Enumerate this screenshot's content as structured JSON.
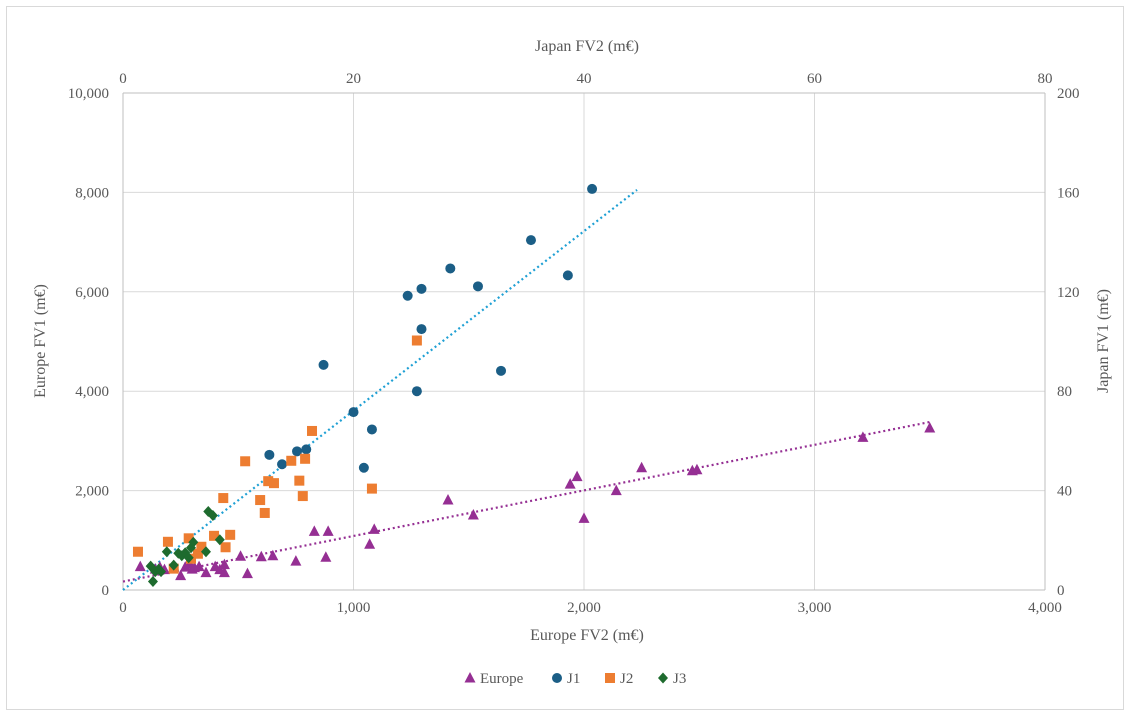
{
  "chart_data": {
    "type": "scatter",
    "xlabel": "Europe FV2 (m€)",
    "ylabel": "Europe FV1 (m€)",
    "x2label": "Japan FV2 (m€)",
    "y2label": "Japan FV1 (m€)",
    "xlim": [
      0,
      4000
    ],
    "ylim": [
      0,
      10000
    ],
    "x2lim": [
      0,
      80
    ],
    "y2lim": [
      0,
      200
    ],
    "x_ticks": [
      "0",
      "1,000",
      "2,000",
      "3,000",
      "4,000"
    ],
    "y_ticks": [
      "0",
      "2,000",
      "4,000",
      "6,000",
      "8,000",
      "10,000"
    ],
    "x2_ticks": [
      "0",
      "20",
      "40",
      "60",
      "80"
    ],
    "y2_ticks": [
      "0",
      "40",
      "80",
      "120",
      "160",
      "200"
    ],
    "grid": true,
    "legend_position": "bottom",
    "series": [
      {
        "name": "Europe",
        "axis": "primary",
        "marker": "triangle",
        "color": "#952f93",
        "points": [
          [
            75,
            470
          ],
          [
            140,
            420
          ],
          [
            160,
            460
          ],
          [
            180,
            410
          ],
          [
            250,
            290
          ],
          [
            270,
            460
          ],
          [
            290,
            520
          ],
          [
            300,
            420
          ],
          [
            310,
            450
          ],
          [
            330,
            470
          ],
          [
            360,
            350
          ],
          [
            400,
            470
          ],
          [
            420,
            410
          ],
          [
            440,
            350
          ],
          [
            440,
            510
          ],
          [
            510,
            680
          ],
          [
            540,
            330
          ],
          [
            600,
            670
          ],
          [
            650,
            690
          ],
          [
            750,
            580
          ],
          [
            830,
            1180
          ],
          [
            880,
            660
          ],
          [
            890,
            1180
          ],
          [
            1070,
            920
          ],
          [
            1090,
            1220
          ],
          [
            1410,
            1810
          ],
          [
            1520,
            1510
          ],
          [
            1940,
            2130
          ],
          [
            1970,
            2280
          ],
          [
            2000,
            1440
          ],
          [
            2140,
            2000
          ],
          [
            2250,
            2460
          ],
          [
            2470,
            2400
          ],
          [
            2490,
            2420
          ],
          [
            3210,
            3070
          ],
          [
            3500,
            3260
          ]
        ]
      },
      {
        "name": "J1",
        "axis": "secondary",
        "marker": "circle",
        "color": "#1b5e86",
        "points": [
          [
            12.7,
            54.4
          ],
          [
            13.8,
            50.6
          ],
          [
            15.1,
            55.8
          ],
          [
            15.9,
            56.6
          ],
          [
            17.4,
            90.6
          ],
          [
            20.0,
            71.6
          ],
          [
            20.9,
            49.2
          ],
          [
            21.6,
            64.6
          ],
          [
            24.7,
            118.4
          ],
          [
            25.5,
            80.0
          ],
          [
            25.9,
            121.2
          ],
          [
            25.9,
            105.0
          ],
          [
            28.4,
            129.4
          ],
          [
            30.8,
            122.2
          ],
          [
            32.8,
            88.2
          ],
          [
            35.4,
            140.8
          ],
          [
            38.6,
            126.6
          ],
          [
            40.7,
            161.4
          ]
        ]
      },
      {
        "name": "J2",
        "axis": "secondary",
        "marker": "square",
        "color": "#ed7d31",
        "points": [
          [
            1.3,
            15.4
          ],
          [
            3.9,
            19.4
          ],
          [
            4.4,
            8.6
          ],
          [
            5.7,
            20.8
          ],
          [
            5.9,
            12.6
          ],
          [
            6.5,
            14.6
          ],
          [
            6.8,
            17.4
          ],
          [
            7.9,
            21.8
          ],
          [
            8.7,
            37.0
          ],
          [
            8.9,
            17.2
          ],
          [
            9.3,
            22.2
          ],
          [
            10.6,
            51.8
          ],
          [
            11.9,
            36.2
          ],
          [
            12.3,
            31.0
          ],
          [
            12.6,
            43.8
          ],
          [
            13.1,
            43.0
          ],
          [
            14.6,
            52.0
          ],
          [
            15.3,
            44.0
          ],
          [
            15.6,
            37.8
          ],
          [
            15.8,
            52.8
          ],
          [
            16.4,
            64.0
          ],
          [
            21.6,
            40.8
          ],
          [
            25.5,
            100.4
          ]
        ]
      },
      {
        "name": "J3",
        "axis": "secondary",
        "marker": "diamond",
        "color": "#1e6b2e",
        "points": [
          [
            2.4,
            9.6
          ],
          [
            2.6,
            3.4
          ],
          [
            2.8,
            7.4
          ],
          [
            3.1,
            8.4
          ],
          [
            3.3,
            7.4
          ],
          [
            3.8,
            15.4
          ],
          [
            4.4,
            10.0
          ],
          [
            4.8,
            14.8
          ],
          [
            5.1,
            13.8
          ],
          [
            5.4,
            15.0
          ],
          [
            5.7,
            13.0
          ],
          [
            5.9,
            17.0
          ],
          [
            6.1,
            19.2
          ],
          [
            7.2,
            15.4
          ],
          [
            7.4,
            31.6
          ],
          [
            7.8,
            30.0
          ],
          [
            8.4,
            20.2
          ]
        ]
      }
    ],
    "trendlines": [
      {
        "series": "Europe",
        "axis": "primary",
        "from": [
          0,
          170
        ],
        "to": [
          3500,
          3380
        ],
        "color": "#952f93"
      },
      {
        "series": "J1",
        "axis": "secondary",
        "from": [
          0,
          0
        ],
        "to": [
          44.6,
          161.0
        ],
        "color": "#1fa0d4"
      }
    ]
  }
}
